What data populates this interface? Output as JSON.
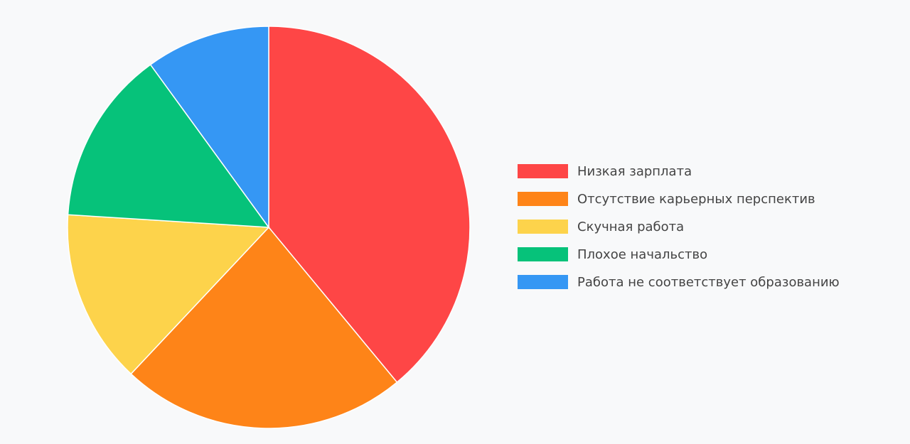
{
  "chart_data": {
    "type": "pie",
    "categories": [
      "Низкая зарплата",
      "Отсутствие карьерных перспектив",
      "Скучная работа",
      "Плохое начальство",
      "Работа не соответствует образованию"
    ],
    "values": [
      39,
      23,
      14,
      14,
      10
    ],
    "colors": [
      "#fe4646",
      "#fe8418",
      "#fdd34b",
      "#06c27a",
      "#3597f4"
    ],
    "legend": "right"
  }
}
